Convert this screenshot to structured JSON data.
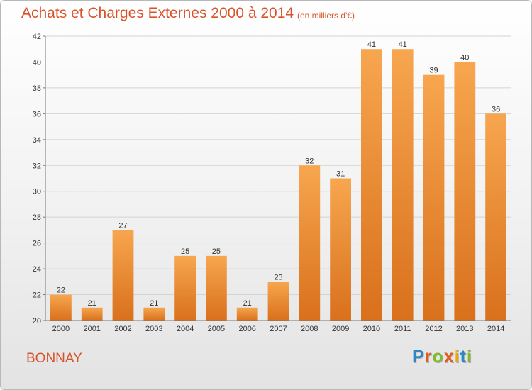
{
  "header": {
    "title": "Achats et Charges Externes 2000 à 2014",
    "subtitle": "(en milliers d'€)"
  },
  "footer": {
    "commune": "BONNAY",
    "logo_text": "Proxiti",
    "logo_colors": [
      "#2e86c9",
      "#e35b1d",
      "#7dbb2f",
      "#e35b1d",
      "#e6a817",
      "#2e86c9",
      "#7dbb2f"
    ]
  },
  "colors": {
    "bar_top": "#f7a64f",
    "bar_bottom": "#d9701c",
    "title": "#d8532b"
  },
  "chart_data": {
    "type": "bar",
    "categories": [
      "2000",
      "2001",
      "2002",
      "2003",
      "2004",
      "2005",
      "2006",
      "2007",
      "2008",
      "2009",
      "2010",
      "2011",
      "2012",
      "2013",
      "2014"
    ],
    "values": [
      22,
      21,
      27,
      21,
      25,
      25,
      21,
      23,
      32,
      31,
      41,
      41,
      39,
      40,
      36
    ],
    "ylim": [
      20,
      42
    ],
    "yticks": [
      20,
      22,
      24,
      26,
      28,
      30,
      32,
      34,
      36,
      38,
      40,
      42
    ],
    "grid": true,
    "legend": "none"
  }
}
